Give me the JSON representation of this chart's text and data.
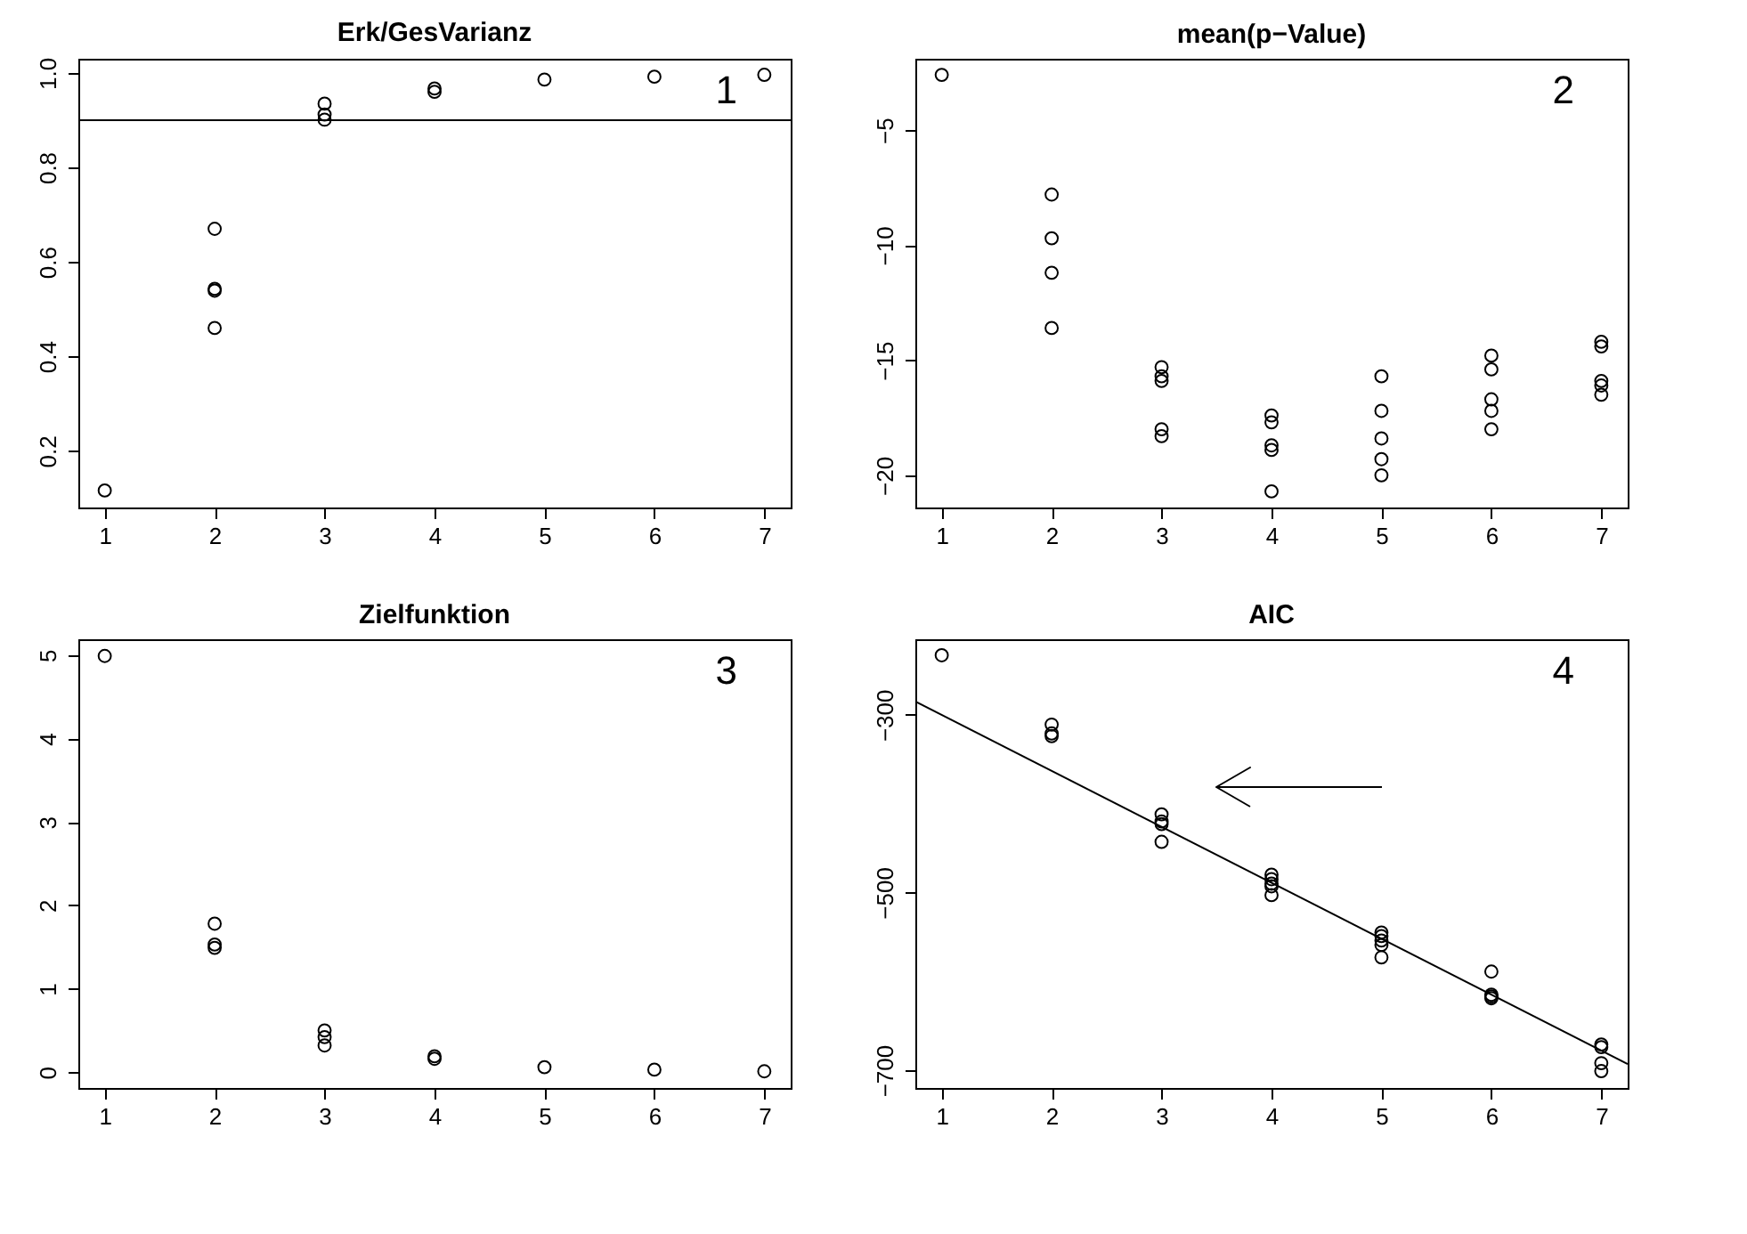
{
  "chart_data": [
    {
      "type": "scatter",
      "title": "Erk/GesVarianz",
      "annotations": [
        "1"
      ],
      "xlim": [
        0.76,
        7.24
      ],
      "xticks": [
        1,
        2,
        3,
        4,
        5,
        6,
        7
      ],
      "ylim": [
        0.08,
        1.03
      ],
      "yticks": [
        0.2,
        0.4,
        0.6,
        0.8,
        {
          "value": 1,
          "label": "1.0"
        }
      ],
      "ref_lines": [
        {
          "axis": "y",
          "value": 0.9,
          "color": "#000000"
        }
      ],
      "series": [
        {
          "color": "#000000",
          "marker": "circle",
          "x": [
            1,
            2,
            2,
            2,
            2,
            3,
            3,
            3,
            4,
            4,
            5,
            6,
            7
          ],
          "values": [
            0.116,
            0.67,
            0.543,
            0.539,
            0.46,
            0.935,
            0.912,
            0.901,
            0.967,
            0.96,
            0.986,
            0.992,
            0.996
          ]
        }
      ]
    },
    {
      "type": "scatter",
      "title": "mean(p−Value)",
      "annotations": [
        "2"
      ],
      "xlim": [
        0.76,
        7.24
      ],
      "xticks": [
        1,
        2,
        3,
        4,
        5,
        6,
        7
      ],
      "ylim": [
        -21.4,
        -1.9
      ],
      "yticks": [
        {
          "value": -5,
          "label": "−5"
        },
        {
          "value": -10,
          "label": "−10"
        },
        {
          "value": -15,
          "label": "−15"
        },
        {
          "value": -20,
          "label": "−20"
        }
      ],
      "series": [
        {
          "color": "#000000",
          "marker": "circle",
          "x": [
            1,
            2,
            2,
            2,
            2,
            3,
            3,
            3,
            3,
            3,
            4,
            4,
            4,
            4,
            4,
            5,
            5,
            5,
            5,
            5,
            6,
            6,
            6,
            6,
            6,
            7,
            7,
            7,
            7,
            7
          ],
          "values": [
            -2.6,
            -7.8,
            -9.7,
            -11.2,
            -13.6,
            -15.3,
            -15.7,
            -15.9,
            -18.0,
            -18.3,
            -17.4,
            -17.7,
            -18.7,
            -18.9,
            -20.7,
            -15.7,
            -17.2,
            -18.4,
            -19.3,
            -20.0,
            -14.8,
            -15.4,
            -16.7,
            -17.2,
            -18.0,
            -14.2,
            -14.4,
            -15.9,
            -16.1,
            -16.5
          ]
        }
      ]
    },
    {
      "type": "scatter",
      "title": "Zielfunktion",
      "annotations": [
        "3"
      ],
      "xlim": [
        0.76,
        7.24
      ],
      "xticks": [
        1,
        2,
        3,
        4,
        5,
        6,
        7
      ],
      "ylim": [
        -0.19,
        5.19
      ],
      "yticks": [
        0,
        1,
        2,
        3,
        4,
        5
      ],
      "series": [
        {
          "color": "#000000",
          "marker": "circle",
          "x": [
            1,
            2,
            2,
            2,
            3,
            3,
            3,
            4,
            4,
            5,
            6,
            7
          ],
          "values": [
            4.99,
            1.78,
            1.53,
            1.49,
            0.5,
            0.42,
            0.32,
            0.19,
            0.16,
            0.06,
            0.03,
            0.01
          ]
        }
      ]
    },
    {
      "type": "scatter",
      "title": "AIC",
      "annotations": [
        "4"
      ],
      "xlim": [
        0.76,
        7.24
      ],
      "xticks": [
        1,
        2,
        3,
        4,
        5,
        6,
        7
      ],
      "ylim": [
        -720,
        -215
      ],
      "yticks": [
        {
          "value": -300,
          "label": "−300"
        },
        {
          "value": -500,
          "label": "−500"
        },
        {
          "value": -700,
          "label": "−700"
        }
      ],
      "series": [
        {
          "color": "#000000",
          "marker": "circle",
          "x": [
            1,
            2,
            2,
            2,
            3,
            3,
            3,
            3,
            4,
            4,
            4,
            4,
            4,
            5,
            5,
            5,
            5,
            5,
            6,
            6,
            6,
            6,
            7,
            7,
            7,
            7
          ],
          "values": [
            -233,
            -311,
            -321,
            -324,
            -412,
            -420,
            -423,
            -443,
            -480,
            -485,
            -490,
            -493,
            -503,
            -545,
            -549,
            -554,
            -559,
            -573,
            -589,
            -615,
            -617,
            -619,
            -671,
            -674,
            -692,
            -701
          ]
        },
        {
          "type": "line",
          "color": "#000000",
          "x": [
            0.76,
            7.24
          ],
          "values": [
            -285,
            -693
          ]
        }
      ]
    }
  ]
}
